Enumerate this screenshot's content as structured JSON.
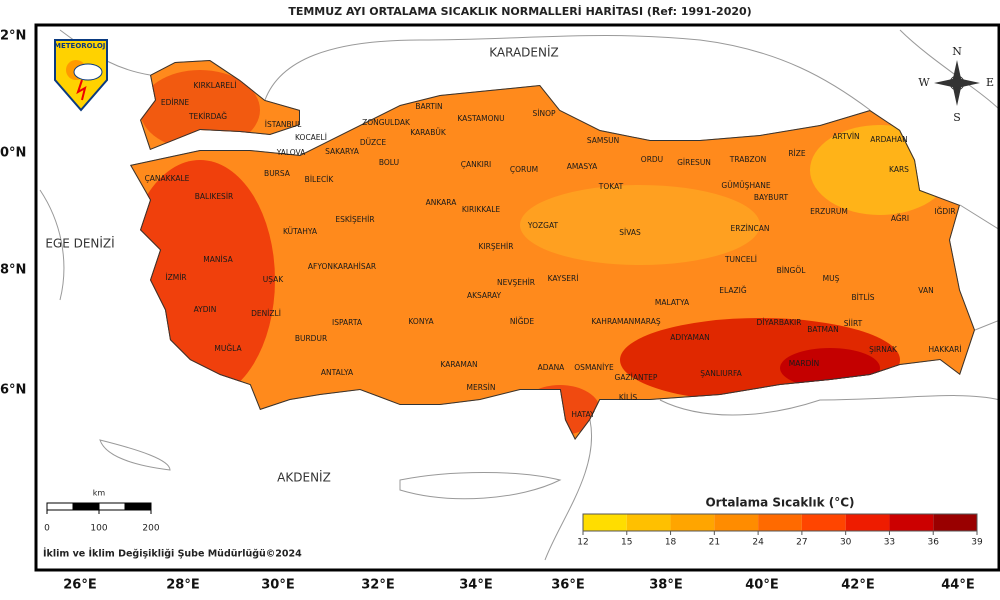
{
  "header": {
    "title": "TEMMUZ AYI ORTALAMA SICAKLIK NORMALLERİ HARİTASI (Ref: 1991-2020)"
  },
  "logo": {
    "text": "METEOROLOJİ"
  },
  "seas": [
    "KARADENİZ",
    "EGE DENİZİ",
    "AKDENİZ"
  ],
  "provinces": [
    "KIRKLARELİ",
    "EDİRNE",
    "TEKİRDAĞ",
    "İSTANBUL",
    "KOCAELİ",
    "SAKARYA",
    "YALOVA",
    "DÜZCE",
    "ZONGULDAK",
    "BARTIN",
    "KARABÜK",
    "KASTAMONU",
    "SİNOP",
    "SAMSUN",
    "ÇANAKKALE",
    "BALIKESİR",
    "BURSA",
    "BİLECİK",
    "BOLU",
    "ÇANKIRI",
    "ÇORUM",
    "AMASYA",
    "TOKAT",
    "ORDU",
    "GİRESUN",
    "TRABZON",
    "RİZE",
    "ARTVİN",
    "ARDAHAN",
    "KARS",
    "GÜMÜŞHANE",
    "BAYBURT",
    "ERZURUM",
    "AĞRI",
    "IĞDIR",
    "ESKİŞEHİR",
    "ANKARA",
    "KIRIKKALE",
    "YOZGAT",
    "SİVAS",
    "ERZİNCAN",
    "KÜTAHYA",
    "MANİSA",
    "İZMİR",
    "UŞAK",
    "AFYONKARAHİSAR",
    "KIRŞEHİR",
    "NEVŞEHİR",
    "KAYSERİ",
    "TUNCELİ",
    "BİNGÖL",
    "MUŞ",
    "ELAZIĞ",
    "MALATYA",
    "BİTLİS",
    "VAN",
    "AYDIN",
    "DENİZLİ",
    "ISPARTA",
    "KONYA",
    "AKSARAY",
    "NİĞDE",
    "KAHRAMANMARAŞ",
    "ADIYAMAN",
    "DİYARBAKIR",
    "BATMAN",
    "SİİRT",
    "ŞIRNAK",
    "HAKKARİ",
    "MUĞLA",
    "BURDUR",
    "ANTALYA",
    "KARAMAN",
    "MERSİN",
    "ADANA",
    "OSMANİYE",
    "GAZİANTEP",
    "ŞANLIURFA",
    "MARDİN",
    "KİLİS",
    "HATAY"
  ],
  "lat_labels": [
    "2°N",
    "0°N",
    "8°N",
    "6°N"
  ],
  "lon_labels": [
    "26°E",
    "28°E",
    "30°E",
    "32°E",
    "34°E",
    "36°E",
    "38°E",
    "40°E",
    "42°E",
    "44°E"
  ],
  "compass": [
    "N",
    "E",
    "S",
    "W"
  ],
  "scale": {
    "unit": "km",
    "ticks": [
      0,
      100,
      200
    ]
  },
  "legend": {
    "title": "Ortalama Sıcaklık (°C)",
    "ticks": [
      12,
      15,
      18,
      21,
      24,
      27,
      30,
      33,
      36,
      39
    ],
    "colors": [
      "#ffdd00",
      "#ffc000",
      "#ffa500",
      "#ff8c00",
      "#ff6a00",
      "#ff4500",
      "#ee1c00",
      "#cc0000",
      "#990000"
    ]
  },
  "footer": "İklim ve İklim Değişikliği Şube Müdürlüğü©2024"
}
